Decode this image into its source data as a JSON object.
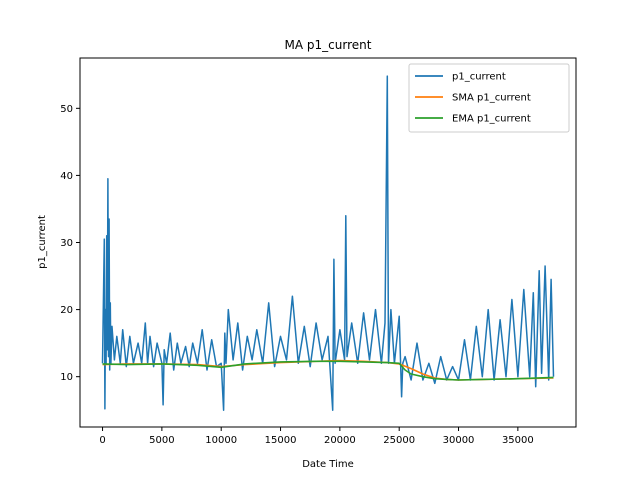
{
  "chart_data": {
    "type": "line",
    "title": "MA p1_current",
    "xlabel": "Date Time",
    "ylabel": "p1_current",
    "xlim": [
      -1900,
      39900
    ],
    "ylim": [
      2.5,
      57.5
    ],
    "xticks": [
      0,
      5000,
      10000,
      15000,
      20000,
      25000,
      30000,
      35000
    ],
    "yticks": [
      10,
      20,
      30,
      40,
      50
    ],
    "grid": false,
    "legend_position": "top-right",
    "series": [
      {
        "name": "p1_current",
        "color": "#1f77b4",
        "x": [
          0,
          150,
          200,
          250,
          300,
          350,
          400,
          450,
          500,
          550,
          600,
          650,
          700,
          800,
          1000,
          1200,
          1500,
          1700,
          2000,
          2300,
          2600,
          3000,
          3300,
          3600,
          3800,
          4000,
          4300,
          4600,
          5000,
          5100,
          5200,
          5400,
          5700,
          6000,
          6300,
          6600,
          7000,
          7300,
          7600,
          8000,
          8400,
          8800,
          9200,
          9600,
          10000,
          10200,
          10300,
          10400,
          10600,
          11000,
          11400,
          11800,
          12200,
          12600,
          13000,
          13500,
          14000,
          14500,
          15000,
          15500,
          16000,
          16500,
          17000,
          17500,
          18000,
          18500,
          19000,
          19400,
          19500,
          19600,
          20000,
          20400,
          20500,
          20600,
          21000,
          21500,
          22000,
          22500,
          23000,
          23500,
          23800,
          24000,
          24100,
          24300,
          24600,
          25000,
          25200,
          25300,
          25500,
          26000,
          26500,
          27000,
          27500,
          28000,
          28500,
          29000,
          29500,
          30000,
          30500,
          31000,
          31500,
          32000,
          32500,
          33000,
          33500,
          34000,
          34500,
          35000,
          35500,
          36000,
          36300,
          36500,
          36800,
          37000,
          37300,
          37600,
          37800,
          38000
        ],
        "values": [
          12,
          30.5,
          5.2,
          20,
          12,
          31,
          14,
          39.5,
          13,
          33.5,
          11,
          21,
          12,
          17.5,
          12.5,
          16,
          12,
          17,
          11.5,
          16,
          12,
          15,
          12,
          18,
          12,
          16,
          11.5,
          15,
          12,
          5.8,
          14,
          12,
          16.5,
          11,
          15,
          12,
          14.5,
          11.5,
          15,
          12,
          17,
          11,
          15.5,
          11.5,
          12,
          5.0,
          16.5,
          12,
          20,
          12.5,
          18,
          11,
          16,
          12.5,
          17,
          12,
          21,
          11.5,
          16,
          12.5,
          22,
          12,
          17.5,
          11.5,
          18,
          12.5,
          16,
          5.0,
          27.5,
          12,
          17,
          12.5,
          34,
          13,
          18,
          12,
          19.5,
          12.5,
          20,
          12,
          18,
          54.8,
          12,
          20,
          12,
          19,
          7,
          12,
          13,
          9.5,
          15,
          9.5,
          12,
          9,
          13,
          9.5,
          11.5,
          9.5,
          15.5,
          9.5,
          17.5,
          10,
          20,
          9.5,
          18.5,
          10,
          21.5,
          10,
          23,
          10,
          22.5,
          8.5,
          25.8,
          10.5,
          26.5,
          9.5,
          24.5,
          10
        ]
      },
      {
        "name": "SMA p1_current",
        "color": "#ff7f0e",
        "x": [
          0,
          2000,
          5000,
          8000,
          10000,
          12000,
          15000,
          18000,
          20000,
          22000,
          24000,
          25000,
          26000,
          27000,
          28000,
          29000,
          30000,
          32000,
          35000,
          38000
        ],
        "values": [
          11.8,
          11.9,
          11.9,
          11.8,
          11.5,
          11.8,
          12.1,
          12.3,
          12.4,
          12.3,
          12.1,
          11.9,
          11.2,
          10.4,
          9.8,
          9.6,
          9.5,
          9.6,
          9.7,
          9.8
        ]
      },
      {
        "name": "EMA p1_current",
        "color": "#2ca02c",
        "x": [
          0,
          2000,
          5000,
          8000,
          10000,
          12000,
          15000,
          18000,
          20000,
          22000,
          24000,
          25000,
          25500,
          26000,
          27000,
          28000,
          29000,
          30000,
          32000,
          35000,
          38000
        ],
        "values": [
          11.9,
          11.8,
          11.9,
          11.7,
          11.4,
          11.9,
          12.2,
          12.3,
          12.3,
          12.2,
          12.1,
          12.0,
          11.0,
          10.4,
          10.0,
          9.7,
          9.6,
          9.5,
          9.6,
          9.7,
          9.9
        ]
      }
    ]
  }
}
